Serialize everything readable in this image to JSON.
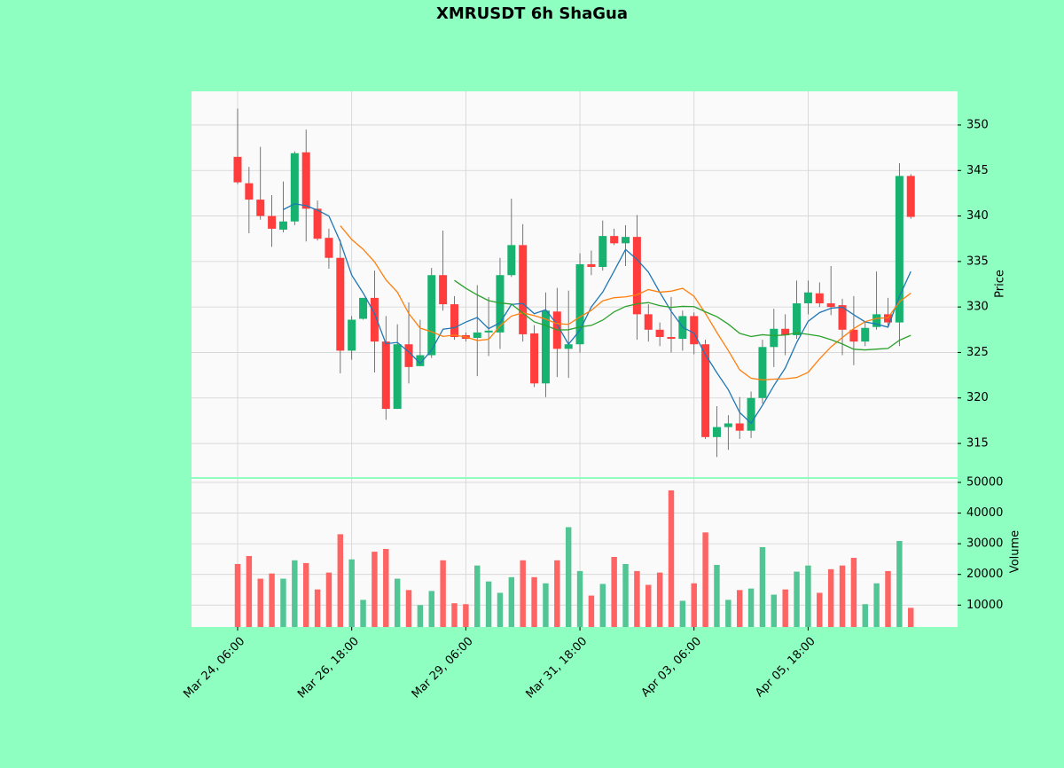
{
  "chart_data": {
    "type": "candlestick",
    "title": "XMRUSDT 6h ShaGua",
    "ylabel": "Price",
    "xlim": [
      -4.04,
      63.1
    ],
    "xticks": [
      {
        "value": 0,
        "label": "Mar 24, 06:00"
      },
      {
        "value": 10,
        "label": "Mar 26, 18:00"
      },
      {
        "value": 20,
        "label": "Mar 29, 06:00"
      },
      {
        "value": 30,
        "label": "Mar 31, 18:00"
      },
      {
        "value": 40,
        "label": "Apr 03, 06:00"
      },
      {
        "value": 50,
        "label": "Apr 05, 18:00"
      }
    ],
    "ylim": [
      311.3,
      353.7
    ],
    "yticks": [
      315,
      320,
      325,
      330,
      335,
      340,
      345,
      350
    ],
    "grid": true,
    "up_color": "#17b26f",
    "down_color": "#ff3d3d",
    "mav": [
      5,
      10,
      20
    ],
    "mav_colors": [
      "#1f77b4",
      "#ff7f0e",
      "#2ca02c"
    ],
    "open": [
      346.5,
      343.6,
      341.8,
      340.0,
      338.5,
      339.4,
      347.0,
      340.8,
      337.6,
      335.4,
      325.2,
      328.7,
      331.0,
      326.2,
      318.8,
      325.9,
      323.5,
      324.7,
      333.5,
      330.3,
      326.9,
      326.6,
      327.2,
      327.2,
      333.5,
      336.8,
      327.1,
      321.6,
      329.5,
      325.4,
      325.9,
      334.7,
      334.4,
      337.8,
      337.0,
      337.7,
      329.2,
      327.5,
      326.7,
      326.5,
      329.0,
      325.9,
      315.7,
      316.8,
      317.2,
      316.4,
      320.0,
      325.6,
      327.6,
      326.9,
      330.4,
      331.5,
      330.4,
      330.2,
      327.5,
      326.2,
      327.8,
      329.2,
      328.3,
      344.4
    ],
    "high": [
      351.8,
      345.4,
      347.6,
      342.3,
      343.8,
      347.1,
      349.5,
      341.7,
      338.6,
      337.4,
      329.0,
      331.0,
      334.0,
      329.0,
      328.1,
      330.5,
      328.6,
      334.3,
      338.4,
      331.2,
      327.2,
      332.4,
      331.1,
      335.4,
      341.9,
      339.1,
      328.0,
      331.6,
      332.1,
      331.8,
      335.9,
      336.2,
      339.5,
      338.6,
      339.0,
      340.1,
      330.3,
      328.3,
      331.1,
      329.6,
      329.4,
      326.4,
      319.1,
      318.1,
      320.1,
      320.7,
      326.4,
      329.8,
      329.2,
      332.9,
      332.9,
      332.7,
      334.5,
      330.9,
      331.2,
      328.4,
      333.9,
      331.0,
      345.8,
      344.6
    ],
    "low": [
      343.5,
      338.1,
      339.6,
      336.6,
      338.2,
      339.0,
      337.2,
      337.3,
      334.2,
      322.7,
      324.2,
      328.6,
      322.8,
      317.6,
      318.8,
      321.6,
      323.5,
      324.4,
      329.6,
      326.4,
      326.2,
      322.4,
      324.6,
      325.4,
      333.3,
      326.2,
      321.2,
      320.1,
      322.3,
      322.2,
      325.0,
      333.5,
      334.0,
      336.8,
      334.5,
      326.4,
      326.2,
      325.7,
      325.0,
      325.2,
      324.8,
      315.5,
      313.5,
      314.3,
      315.5,
      315.6,
      319.4,
      323.4,
      324.7,
      326.5,
      329.2,
      330.0,
      329.1,
      324.7,
      323.6,
      325.7,
      327.5,
      327.8,
      325.7,
      339.7
    ],
    "close": [
      343.7,
      341.8,
      340.0,
      338.6,
      339.4,
      346.9,
      340.8,
      337.5,
      335.4,
      325.2,
      328.6,
      331.0,
      326.2,
      318.8,
      325.9,
      323.4,
      324.7,
      333.5,
      330.3,
      326.7,
      326.5,
      327.2,
      327.4,
      333.5,
      336.8,
      327.0,
      321.6,
      329.6,
      325.4,
      325.9,
      334.7,
      334.4,
      337.8,
      337.0,
      337.7,
      329.2,
      327.5,
      326.7,
      326.5,
      329.0,
      325.9,
      315.7,
      316.8,
      317.2,
      316.4,
      320.0,
      325.6,
      327.6,
      326.9,
      330.4,
      331.6,
      330.4,
      330.0,
      327.5,
      326.2,
      327.7,
      329.2,
      328.3,
      344.4,
      339.9
    ],
    "volume": {
      "ylabel": "Volume",
      "ylim": [
        2857,
        51143
      ],
      "yticks": [
        10000,
        20000,
        30000,
        40000,
        50000
      ],
      "up_color": "#52c594",
      "down_color": "#ff6464",
      "values": [
        23400,
        26000,
        18600,
        20300,
        18600,
        24600,
        23700,
        15100,
        20600,
        33100,
        24900,
        11700,
        27400,
        28300,
        18600,
        14900,
        10000,
        14600,
        24600,
        10600,
        10300,
        22900,
        17700,
        14000,
        19100,
        24600,
        19100,
        17100,
        24600,
        35400,
        21100,
        13100,
        16900,
        25700,
        23400,
        21100,
        16600,
        20600,
        47400,
        11400,
        17100,
        33700,
        23100,
        11700,
        14900,
        15400,
        28900,
        13400,
        15100,
        20900,
        22900,
        14000,
        21700,
        22900,
        25400,
        10300,
        17100,
        21100,
        30900,
        9100
      ]
    }
  }
}
